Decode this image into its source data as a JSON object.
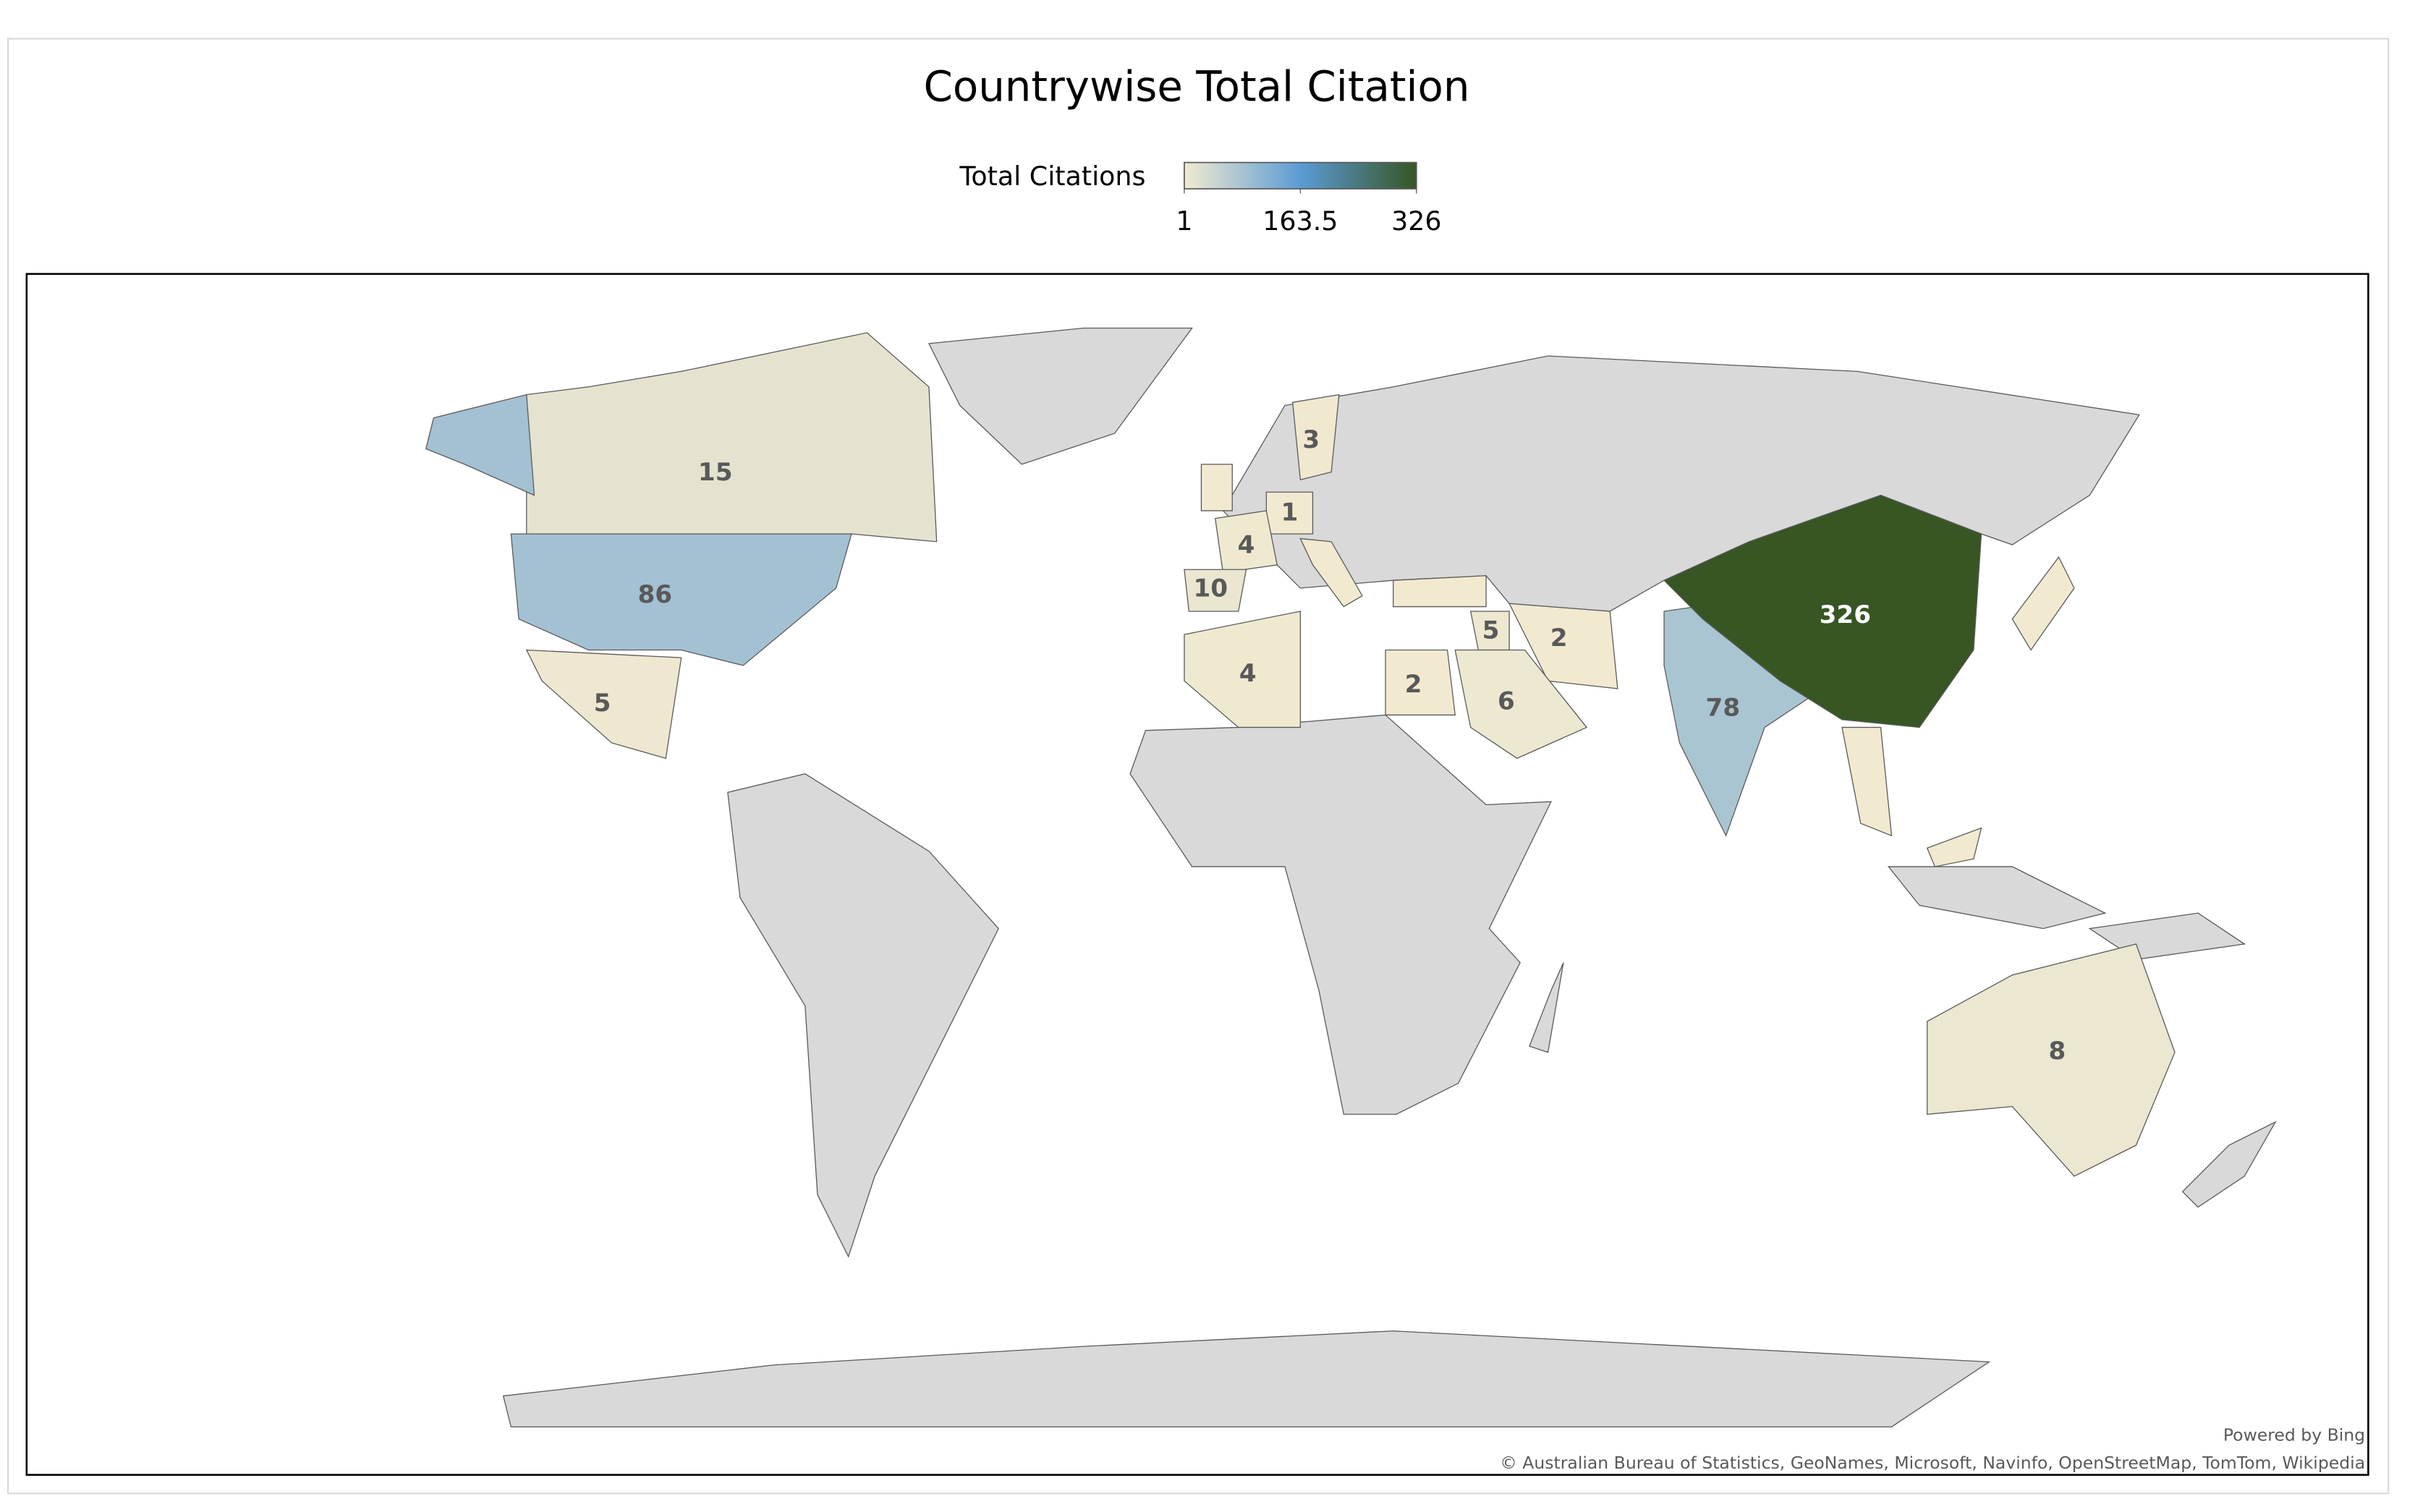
{
  "chart_data": {
    "type": "choropleth",
    "title": "Countrywise Total Citation",
    "legend_title": "Total Citations",
    "colorscale": {
      "colors": [
        "#f2ead0",
        "#5b9bd5",
        "#375623"
      ],
      "range": [
        1,
        326
      ],
      "ticks": [
        1,
        163.5,
        326
      ]
    },
    "values": [
      15,
      86,
      5,
      3,
      1,
      4,
      10,
      4,
      2,
      5,
      2,
      6,
      78,
      326,
      8
    ],
    "attribution": [
      "Powered by Bing",
      "© Australian Bureau of Statistics, GeoNames, Microsoft, Navinfo, OpenStreetMap, TomTom, Wikipedia"
    ]
  }
}
